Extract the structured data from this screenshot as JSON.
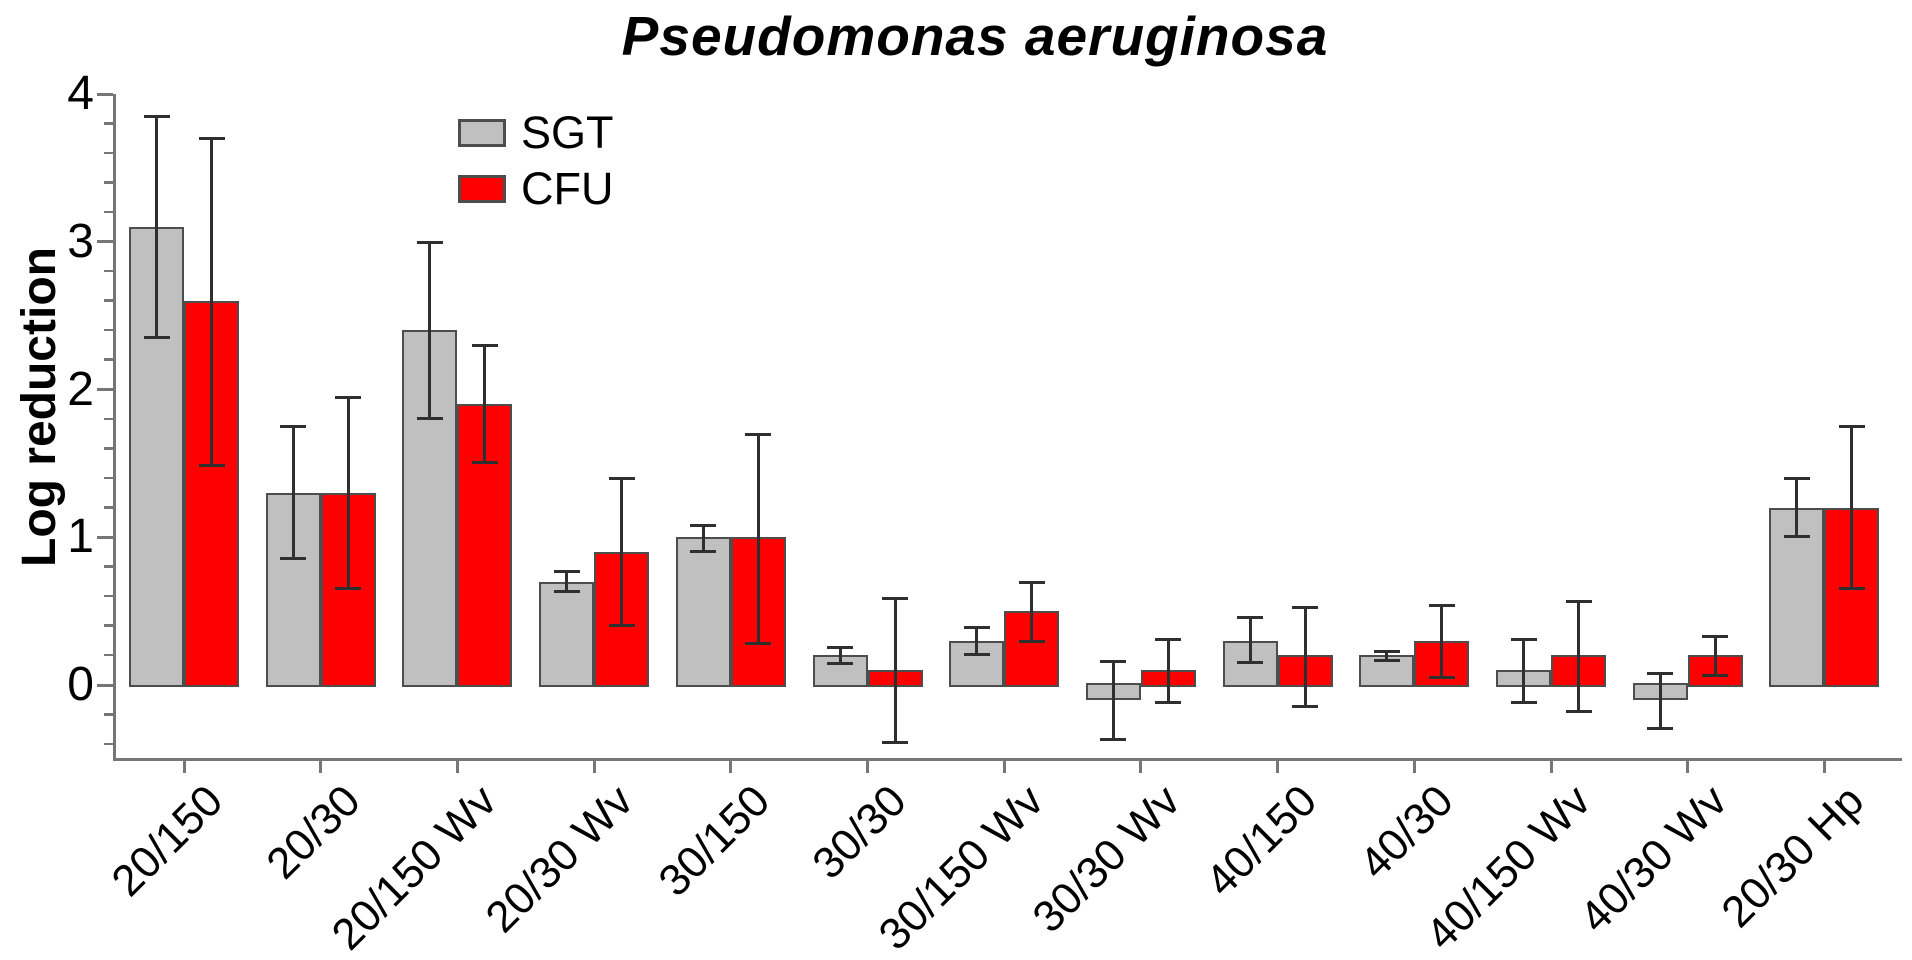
{
  "chart_data": {
    "type": "bar",
    "title": "Pseudomonas aeruginosa",
    "ylabel": "Log reduction",
    "xlabel": "",
    "categories": [
      "20/150",
      "20/30",
      "20/150 Wv",
      "20/30 Wv",
      "30/150",
      "30/30",
      "30/150 Wv",
      "30/30 Wv",
      "40/150",
      "40/30",
      "40/150 Wv",
      "40/30 Wv",
      "20/30 Hp"
    ],
    "series": [
      {
        "name": "SGT",
        "color": "#c0c0c0",
        "values": [
          3.1,
          1.3,
          2.4,
          0.7,
          1.0,
          0.2,
          0.3,
          -0.1,
          0.3,
          0.2,
          0.1,
          -0.1,
          1.2
        ],
        "error_low": [
          2.35,
          0.85,
          1.8,
          0.63,
          0.9,
          0.14,
          0.2,
          -0.37,
          0.15,
          0.16,
          -0.12,
          -0.3,
          1.0
        ],
        "error_high": [
          3.85,
          1.75,
          3.0,
          0.77,
          1.08,
          0.26,
          0.39,
          0.16,
          0.46,
          0.23,
          0.31,
          0.08,
          1.4
        ]
      },
      {
        "name": "CFU",
        "color": "#ff0000",
        "values": [
          2.6,
          1.3,
          1.9,
          0.9,
          1.0,
          0.1,
          0.5,
          0.1,
          0.2,
          0.3,
          0.2,
          0.2,
          1.2
        ],
        "error_low": [
          1.48,
          0.65,
          1.5,
          0.4,
          0.28,
          -0.39,
          0.29,
          -0.12,
          -0.15,
          0.05,
          -0.18,
          0.06,
          0.65
        ],
        "error_high": [
          3.7,
          1.95,
          2.3,
          1.4,
          1.7,
          0.59,
          0.7,
          0.31,
          0.53,
          0.54,
          0.57,
          0.33,
          1.75
        ]
      }
    ],
    "ylim": [
      -0.5,
      4
    ],
    "y_ticks": [
      "0",
      "1",
      "2",
      "3",
      "4"
    ],
    "y_tick_values": [
      0,
      1,
      2,
      3,
      4
    ],
    "minor_tick_step": 0.2,
    "grid": false,
    "legend_position": "upper-left-inside",
    "bar_edge_color": "#4d4d4d",
    "error_bar_color": "#2f2f2f",
    "axis_color": "#767676",
    "text_color": "#000000",
    "background_color": "#ffffff"
  }
}
